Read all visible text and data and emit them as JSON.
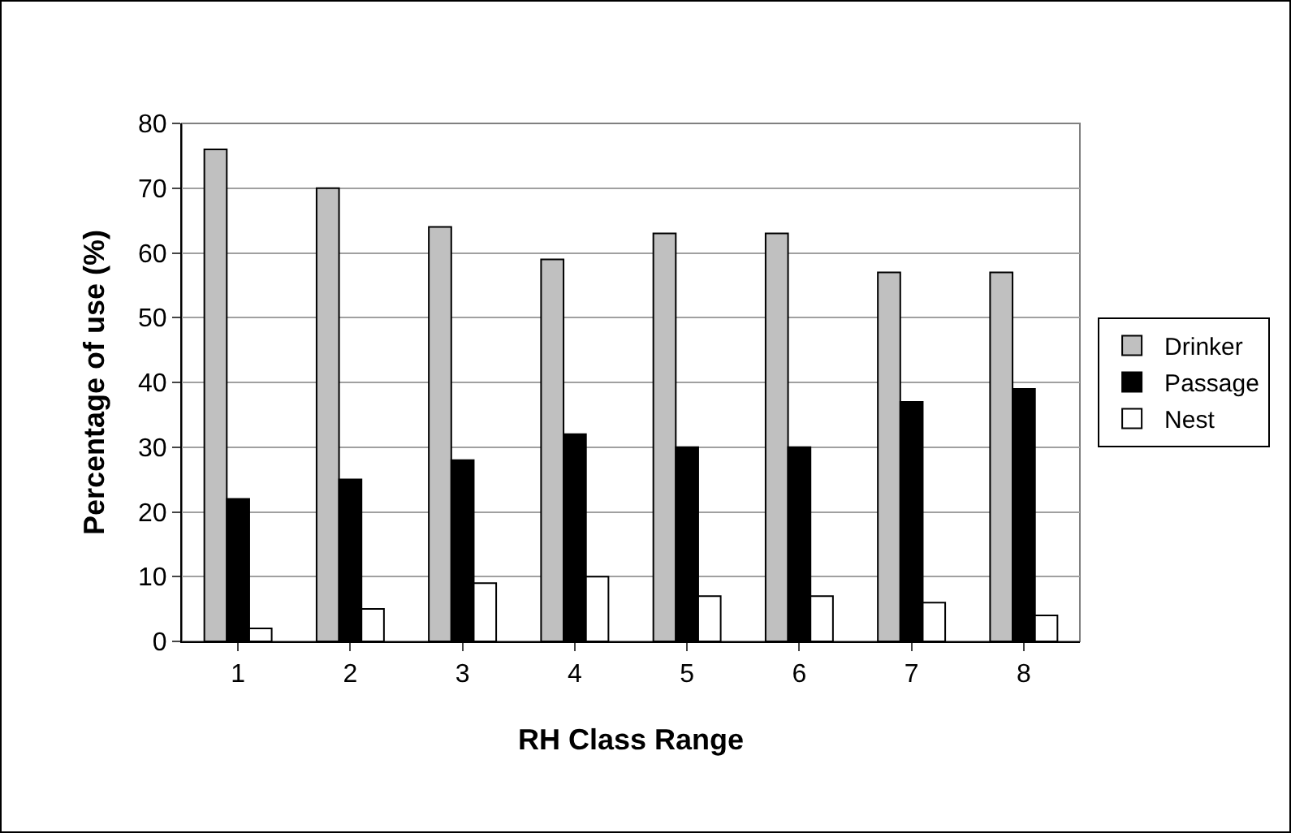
{
  "chart_data": {
    "type": "bar",
    "xlabel": "RH Class Range",
    "ylabel": "Percentage of use (%)",
    "categories": [
      "1",
      "2",
      "3",
      "4",
      "5",
      "6",
      "7",
      "8"
    ],
    "series": [
      {
        "name": "Drinker",
        "color": "#c0c0c0",
        "values": [
          76,
          70,
          64,
          59,
          63,
          63,
          57,
          57
        ]
      },
      {
        "name": "Passage",
        "color": "#000000",
        "values": [
          22,
          25,
          28,
          32,
          30,
          30,
          37,
          39
        ]
      },
      {
        "name": "Nest",
        "color": "#ffffff",
        "values": [
          2,
          5,
          9,
          10,
          7,
          7,
          6,
          4
        ]
      }
    ],
    "ylim": [
      0,
      80
    ],
    "yticks": [
      0,
      10,
      20,
      30,
      40,
      50,
      60,
      70,
      80
    ],
    "grid": "y",
    "legend": "right"
  }
}
